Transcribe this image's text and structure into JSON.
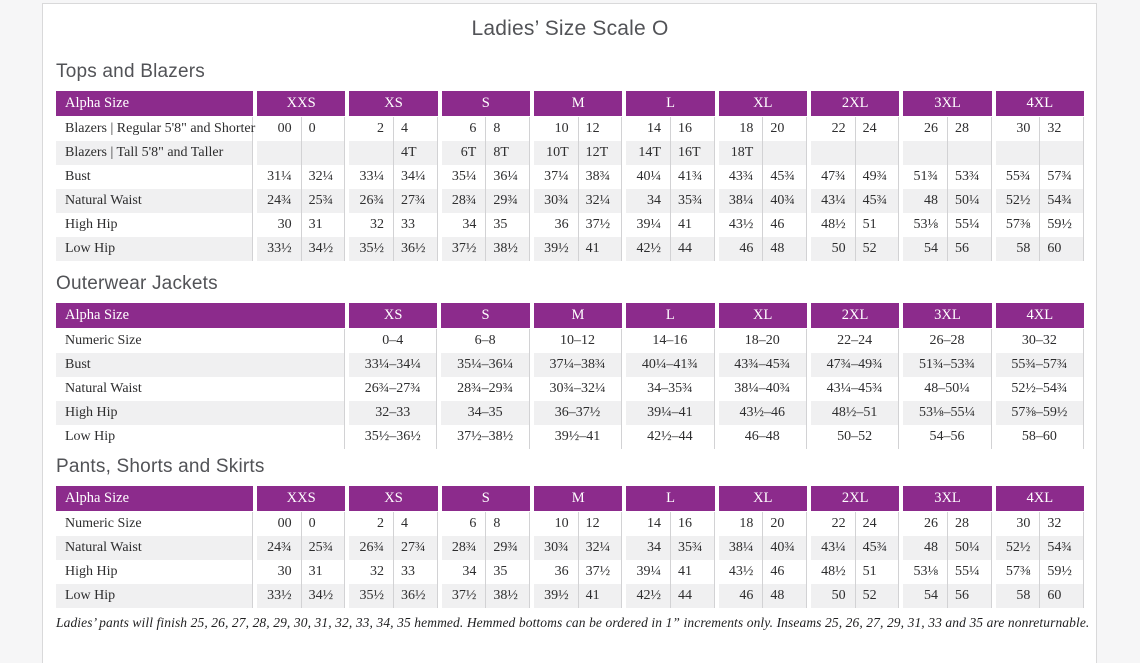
{
  "page": {
    "title": "Ladies’ Size Scale O",
    "footnote": "Ladies’ pants will finish 25, 26, 27, 28, 29, 30, 31, 32, 33, 34, 35 hemmed. Hemmed bottoms can be ordered in 1” increments only. Inseams 25, 26, 27, 29, 31, 33 and 35 are nonreturnable."
  },
  "colors": {
    "header_purple": "#8c2b8c",
    "row_stripe": "#f0f0f1",
    "divider_gray": "#d2d2d4"
  },
  "tables": {
    "tops": {
      "section_title": "Tops and Blazers",
      "header_label": "Alpha Size",
      "sizes": [
        "XXS",
        "XS",
        "S",
        "M",
        "L",
        "XL",
        "2XL",
        "3XL",
        "4XL"
      ],
      "rows": [
        {
          "label": "Blazers | Regular 5'8\" and Shorter",
          "values": [
            "00",
            "0",
            "2",
            "4",
            "6",
            "8",
            "10",
            "12",
            "14",
            "16",
            "18",
            "20",
            "22",
            "24",
            "26",
            "28",
            "30",
            "32"
          ]
        },
        {
          "label": "Blazers | Tall 5'8\" and Taller",
          "values": [
            "",
            "",
            "",
            "4T",
            "6T",
            "8T",
            "10T",
            "12T",
            "14T",
            "16T",
            "18T",
            "",
            "",
            "",
            "",
            "",
            "",
            ""
          ]
        },
        {
          "label": "Bust",
          "values": [
            "31¼",
            "32¼",
            "33¼",
            "34¼",
            "35¼",
            "36¼",
            "37¼",
            "38¾",
            "40¼",
            "41¾",
            "43¾",
            "45¾",
            "47¾",
            "49¾",
            "51¾",
            "53¾",
            "55¾",
            "57¾"
          ]
        },
        {
          "label": "Natural Waist",
          "values": [
            "24¾",
            "25¾",
            "26¾",
            "27¾",
            "28¾",
            "29¾",
            "30¾",
            "32¼",
            "34",
            "35¾",
            "38¼",
            "40¾",
            "43¼",
            "45¾",
            "48",
            "50¼",
            "52½",
            "54¾"
          ]
        },
        {
          "label": "High Hip",
          "values": [
            "30",
            "31",
            "32",
            "33",
            "34",
            "35",
            "36",
            "37½",
            "39¼",
            "41",
            "43½",
            "46",
            "48½",
            "51",
            "53⅛",
            "55¼",
            "57⅜",
            "59½"
          ]
        },
        {
          "label": "Low Hip",
          "values": [
            "33½",
            "34½",
            "35½",
            "36½",
            "37½",
            "38½",
            "39½",
            "41",
            "42½",
            "44",
            "46",
            "48",
            "50",
            "52",
            "54",
            "56",
            "58",
            "60"
          ]
        }
      ]
    },
    "outerwear": {
      "section_title": "Outerwear Jackets",
      "header_label": "Alpha Size",
      "sizes": [
        "XS",
        "S",
        "M",
        "L",
        "XL",
        "2XL",
        "3XL",
        "4XL"
      ],
      "rows": [
        {
          "label": "Numeric Size",
          "values": [
            "0–4",
            "6–8",
            "10–12",
            "14–16",
            "18–20",
            "22–24",
            "26–28",
            "30–32"
          ]
        },
        {
          "label": "Bust",
          "values": [
            "33¼–34¼",
            "35¼–36¼",
            "37¼–38¾",
            "40¼–41¾",
            "43¾–45¾",
            "47¾–49¾",
            "51¾–53¾",
            "55¾–57¾"
          ]
        },
        {
          "label": "Natural Waist",
          "values": [
            "26¾–27¾",
            "28¾–29¾",
            "30¾–32¼",
            "34–35¾",
            "38¼–40¾",
            "43¼–45¾",
            "48–50¼",
            "52½–54¾"
          ]
        },
        {
          "label": "High Hip",
          "values": [
            "32–33",
            "34–35",
            "36–37½",
            "39¼–41",
            "43½–46",
            "48½–51",
            "53⅛–55¼",
            "57⅜–59½"
          ]
        },
        {
          "label": "Low Hip",
          "values": [
            "35½–36½",
            "37½–38½",
            "39½–41",
            "42½–44",
            "46–48",
            "50–52",
            "54–56",
            "58–60"
          ]
        }
      ]
    },
    "pants": {
      "section_title": "Pants, Shorts and Skirts",
      "header_label": "Alpha Size",
      "sizes": [
        "XXS",
        "XS",
        "S",
        "M",
        "L",
        "XL",
        "2XL",
        "3XL",
        "4XL"
      ],
      "rows": [
        {
          "label": "Numeric Size",
          "values": [
            "00",
            "0",
            "2",
            "4",
            "6",
            "8",
            "10",
            "12",
            "14",
            "16",
            "18",
            "20",
            "22",
            "24",
            "26",
            "28",
            "30",
            "32"
          ]
        },
        {
          "label": "Natural Waist",
          "values": [
            "24¾",
            "25¾",
            "26¾",
            "27¾",
            "28¾",
            "29¾",
            "30¾",
            "32¼",
            "34",
            "35¾",
            "38¼",
            "40¾",
            "43¼",
            "45¾",
            "48",
            "50¼",
            "52½",
            "54¾"
          ]
        },
        {
          "label": "High Hip",
          "values": [
            "30",
            "31",
            "32",
            "33",
            "34",
            "35",
            "36",
            "37½",
            "39¼",
            "41",
            "43½",
            "46",
            "48½",
            "51",
            "53⅛",
            "55¼",
            "57⅜",
            "59½"
          ]
        },
        {
          "label": "Low Hip",
          "values": [
            "33½",
            "34½",
            "35½",
            "36½",
            "37½",
            "38½",
            "39½",
            "41",
            "42½",
            "44",
            "46",
            "48",
            "50",
            "52",
            "54",
            "56",
            "58",
            "60"
          ]
        }
      ]
    }
  }
}
